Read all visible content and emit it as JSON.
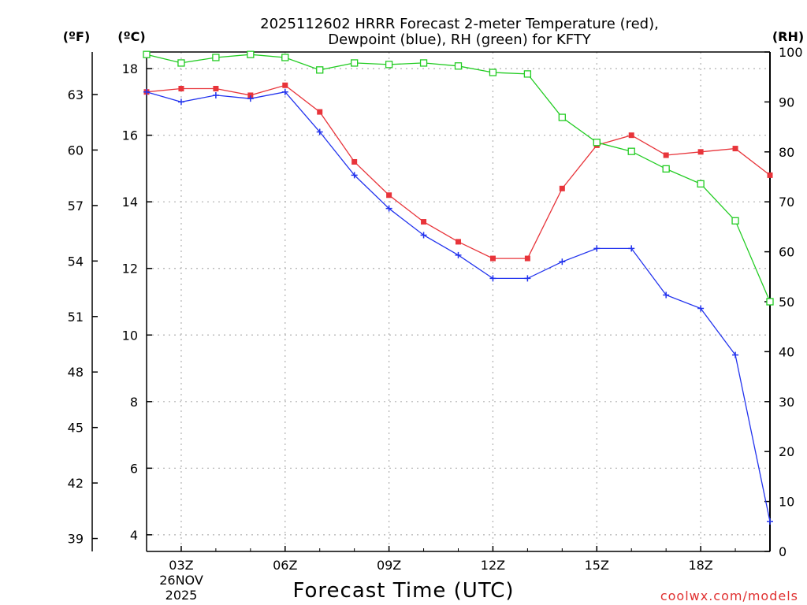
{
  "chart_data": {
    "type": "line",
    "title_line1": "2025112602 HRRR Forecast 2-meter Temperature (red),",
    "title_line2": "Dewpoint (blue), RH (green) for KFTY",
    "xlabel": "Forecast Time (UTC)",
    "credit": "coolwx.com/models",
    "date_label_1": "26NOV",
    "date_label_2": "2025",
    "unit_f": "(ºF)",
    "unit_c": "(ºC)",
    "unit_rh": "(RH)",
    "x": [
      2,
      3,
      4,
      5,
      6,
      7,
      8,
      9,
      10,
      11,
      12,
      13,
      14,
      15,
      16,
      17,
      18,
      19,
      20
    ],
    "x_range": [
      2,
      20
    ],
    "x_ticks": [
      3,
      6,
      9,
      12,
      15,
      18
    ],
    "x_tick_labels": [
      "03Z",
      "06Z",
      "09Z",
      "12Z",
      "15Z",
      "18Z"
    ],
    "c_range": [
      3.5,
      18.5
    ],
    "c_ticks": [
      4,
      6,
      8,
      10,
      12,
      14,
      16,
      18
    ],
    "f_ticks": [
      39,
      42,
      45,
      48,
      51,
      54,
      57,
      60,
      63
    ],
    "rh_range": [
      0,
      100
    ],
    "rh_ticks": [
      0,
      10,
      20,
      30,
      40,
      50,
      60,
      70,
      80,
      90,
      100
    ],
    "series": [
      {
        "name": "Temperature",
        "color": "#e8343a",
        "marker": "filled-square",
        "axis": "C",
        "values": [
          17.3,
          17.4,
          17.4,
          17.2,
          17.5,
          16.7,
          15.2,
          14.2,
          13.4,
          12.8,
          12.3,
          12.3,
          14.4,
          15.7,
          16.0,
          15.4,
          15.5,
          15.6,
          14.8
        ]
      },
      {
        "name": "Dewpoint",
        "color": "#2233ee",
        "marker": "plus",
        "axis": "C",
        "values": [
          17.3,
          17.0,
          17.2,
          17.1,
          17.3,
          16.1,
          14.8,
          13.8,
          13.0,
          12.4,
          11.7,
          11.7,
          12.2,
          12.6,
          12.6,
          11.2,
          10.8,
          9.4,
          4.4
        ]
      },
      {
        "name": "RH",
        "color": "#22cc22",
        "marker": "open-square",
        "axis": "RH",
        "values": [
          99.5,
          97.8,
          98.9,
          99.5,
          98.9,
          96.4,
          97.8,
          97.5,
          97.8,
          97.2,
          95.9,
          95.6,
          86.9,
          81.9,
          80.1,
          76.6,
          73.6,
          66.2,
          50.0
        ]
      }
    ]
  }
}
